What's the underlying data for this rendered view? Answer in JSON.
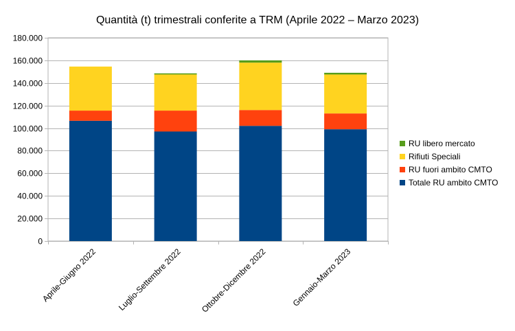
{
  "chart_data": {
    "type": "bar",
    "stacked": true,
    "title": "Quantità (t) trimestrali conferite a TRM (Aprile 2022 – Marzo 2023)",
    "xlabel": "",
    "ylabel": "",
    "ylim": [
      0,
      180000
    ],
    "yticks": [
      0,
      20000,
      40000,
      60000,
      80000,
      100000,
      120000,
      140000,
      160000,
      180000
    ],
    "ytick_labels": [
      "0",
      "20.000",
      "40.000",
      "60.000",
      "80.000",
      "100.000",
      "120.000",
      "140.000",
      "160.000",
      "180.000"
    ],
    "grid": true,
    "legend_position": "right",
    "categories": [
      "Aprile-Giugno 2022",
      "Luglio-Settembre 2022",
      "Ottobre-Dicembre 2022",
      "Gennaio-Marzo 2023"
    ],
    "series": [
      {
        "name": "Totale RU ambito CMTO",
        "color": "#004586",
        "values": [
          106500,
          97000,
          102000,
          99000
        ]
      },
      {
        "name": "RU fuori ambito CMTO",
        "color": "#ff420e",
        "values": [
          9000,
          18500,
          14000,
          14000
        ]
      },
      {
        "name": "Rifiuti Speciali",
        "color": "#ffd320",
        "values": [
          39000,
          32000,
          42000,
          34500
        ]
      },
      {
        "name": "RU libero mercato",
        "color": "#579d1c",
        "values": [
          0,
          1000,
          2000,
          1500
        ]
      }
    ]
  }
}
